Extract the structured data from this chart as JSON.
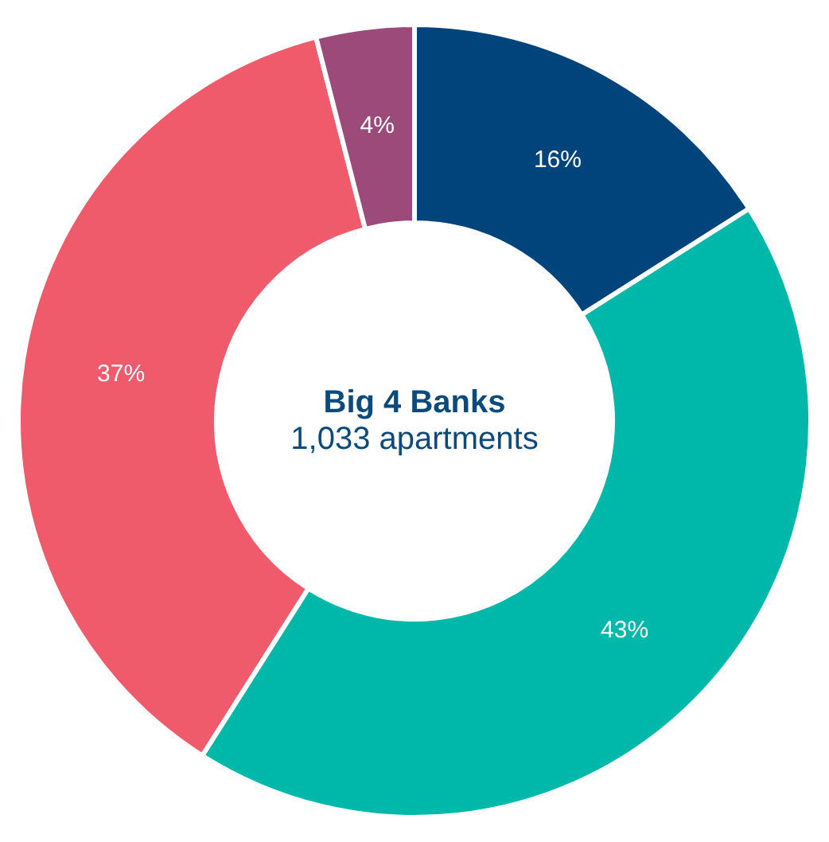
{
  "chart_data": {
    "type": "donut",
    "title": "Big 4 Banks",
    "subtitle": "1,033 apartments",
    "categories": [
      null,
      null,
      null,
      null
    ],
    "values": [
      16,
      43,
      37,
      4
    ],
    "colors": [
      "#00447c",
      "#00b8a9",
      "#ef5b6a",
      "#9c4a7a"
    ],
    "value_labels": [
      "16%",
      "43%",
      "37%",
      "4%"
    ],
    "legend": false
  }
}
